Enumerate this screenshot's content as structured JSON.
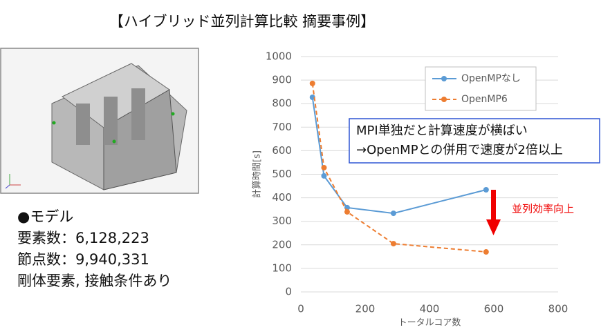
{
  "title": "【ハイブリッド並列計算比較 摘要事例】",
  "model": {
    "lines": [
      "●モデル",
      "要素数：6,128,223",
      "節点数：9,940,331",
      "剛体要素, 接触条件あり"
    ]
  },
  "chart_data": {
    "type": "line",
    "x_label": "トータルコア数",
    "y_label": "計算時間[s]",
    "x": [
      36,
      72,
      144,
      288,
      576
    ],
    "series": [
      {
        "name": "OpenMPなし",
        "color": "#5b9bd5",
        "line_style": "solid",
        "values": [
          827,
          493,
          358,
          334,
          434
        ]
      },
      {
        "name": "OpenMP6",
        "color": "#ed7d31",
        "line_style": "dashed",
        "values": [
          886,
          528,
          340,
          205,
          170
        ]
      }
    ],
    "xlim": [
      0,
      800
    ],
    "xticks": [
      0,
      200,
      400,
      600,
      800
    ],
    "ylim": [
      0,
      1000
    ],
    "yticks": [
      0,
      100,
      200,
      300,
      400,
      500,
      600,
      700,
      800,
      900,
      1000
    ],
    "grid": true,
    "legend": "top-right",
    "annotations": [
      "MPI単独だと計算速度が横ばい",
      "→OpenMPとの併用で速度が2倍以上",
      "並列効率向上"
    ]
  }
}
